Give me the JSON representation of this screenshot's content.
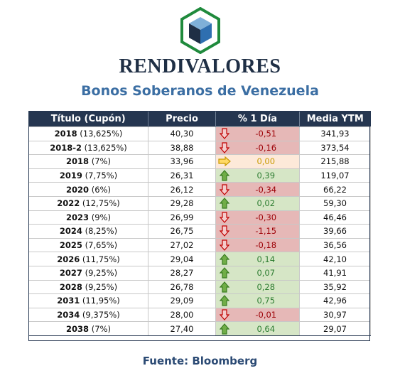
{
  "brand": "RENDIVALORES",
  "subtitle": "Bonos Soberanos de Venezuela",
  "source": "Fuente: Bloomberg",
  "colors": {
    "header_bg": "#253650",
    "down": "#e6b8b7",
    "up": "#d6e6c6",
    "flat": "#fde9d9",
    "subtitle": "#3b6ea3"
  },
  "table": {
    "headers": [
      "Título (Cupón)",
      "Precio",
      "% 1 Día",
      "Media YTM"
    ],
    "rows": [
      {
        "year": "2018",
        "coupon": " (13,625%)",
        "precio": "40,30",
        "trend": "down",
        "pct": "-0,51",
        "ytm": "341,93"
      },
      {
        "year": "2018-2",
        "coupon": " (13,625%)",
        "precio": "38,88",
        "trend": "down",
        "pct": "-0,16",
        "ytm": "373,54"
      },
      {
        "year": "2018",
        "coupon": " (7%)",
        "precio": "33,96",
        "trend": "flat",
        "pct": "0,00",
        "ytm": "215,88"
      },
      {
        "year": "2019",
        "coupon": " (7,75%)",
        "precio": "26,31",
        "trend": "up",
        "pct": "0,39",
        "ytm": "119,07"
      },
      {
        "year": "2020",
        "coupon": " (6%)",
        "precio": "26,12",
        "trend": "down",
        "pct": "-0,34",
        "ytm": "66,22"
      },
      {
        "year": "2022",
        "coupon": " (12,75%)",
        "precio": "29,28",
        "trend": "up",
        "pct": "0,02",
        "ytm": "59,30"
      },
      {
        "year": "2023",
        "coupon": " (9%)",
        "precio": "26,99",
        "trend": "down",
        "pct": "-0,30",
        "ytm": "46,46"
      },
      {
        "year": "2024",
        "coupon": " (8,25%)",
        "precio": "26,75",
        "trend": "down",
        "pct": "-1,15",
        "ytm": "39,66"
      },
      {
        "year": "2025",
        "coupon": " (7,65%)",
        "precio": "27,02",
        "trend": "down",
        "pct": "-0,18",
        "ytm": "36,56"
      },
      {
        "year": "2026",
        "coupon": " (11,75%)",
        "precio": "29,04",
        "trend": "up",
        "pct": "0,14",
        "ytm": "42,10"
      },
      {
        "year": "2027",
        "coupon": " (9,25%)",
        "precio": "28,27",
        "trend": "up",
        "pct": "0,07",
        "ytm": "41,91"
      },
      {
        "year": "2028",
        "coupon": " (9,25%)",
        "precio": "26,78",
        "trend": "up",
        "pct": "0,28",
        "ytm": "35,92"
      },
      {
        "year": "2031",
        "coupon": " (11,95%)",
        "precio": "29,09",
        "trend": "up",
        "pct": "0,75",
        "ytm": "42,96"
      },
      {
        "year": "2034",
        "coupon": " (9,375%)",
        "precio": "28,00",
        "trend": "down",
        "pct": "-0,01",
        "ytm": "30,97"
      },
      {
        "year": "2038",
        "coupon": " (7%)",
        "precio": "27,40",
        "trend": "up",
        "pct": "0,64",
        "ytm": "29,07"
      }
    ]
  }
}
